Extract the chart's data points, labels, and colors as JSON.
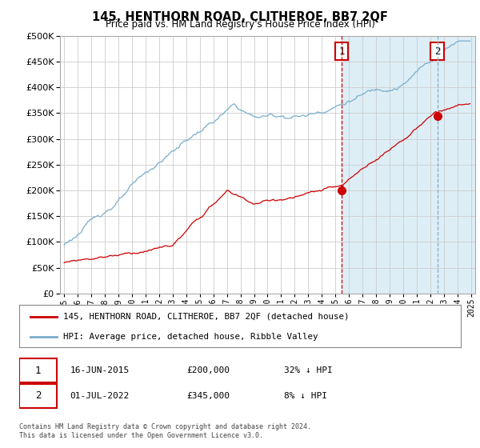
{
  "title": "145, HENTHORN ROAD, CLITHEROE, BB7 2QF",
  "subtitle": "Price paid vs. HM Land Registry's House Price Index (HPI)",
  "legend_line1": "145, HENTHORN ROAD, CLITHEROE, BB7 2QF (detached house)",
  "legend_line2": "HPI: Average price, detached house, Ribble Valley",
  "sale1_date": "16-JUN-2015",
  "sale1_price": "£200,000",
  "sale1_hpi": "32% ↓ HPI",
  "sale1_year": 2015.46,
  "sale1_value": 200000,
  "sale2_date": "01-JUL-2022",
  "sale2_price": "£345,000",
  "sale2_hpi": "8% ↓ HPI",
  "sale2_year": 2022.5,
  "sale2_value": 345000,
  "footer": "Contains HM Land Registry data © Crown copyright and database right 2024.\nThis data is licensed under the Open Government Licence v3.0.",
  "red_color": "#cc0000",
  "blue_color": "#7aadcc",
  "blue_fill": "#ddeef6",
  "grid_color": "#cccccc",
  "bg_color": "#ffffff",
  "ylim": [
    0,
    500000
  ],
  "yticks": [
    0,
    50000,
    100000,
    150000,
    200000,
    250000,
    300000,
    350000,
    400000,
    450000,
    500000
  ],
  "xlim_start": 1994.7,
  "xlim_end": 2025.3
}
